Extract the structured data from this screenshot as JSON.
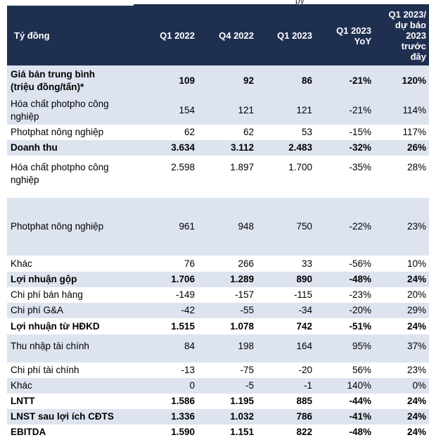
{
  "header": {
    "top_fragment": "py",
    "columns": [
      "Tỷ đồng",
      "Q1 2022",
      "Q4 2022",
      "Q1 2023",
      "Q1 2023\nYoY",
      "Q1 2023/\ndự báo\n2023\ntrước\nđây"
    ]
  },
  "rows": [
    {
      "label": "Giá bán trung bình\n(triệu đồng/tấn)*",
      "q1_2022": "109",
      "q4_2022": "92",
      "q1_2023": "86",
      "yoy": "-21%",
      "vs_forecast": "120%"
    },
    {
      "label": "Hóa chất photpho công\nnghiệp",
      "q1_2022": "154",
      "q4_2022": "121",
      "q1_2023": "121",
      "yoy": "-21%",
      "vs_forecast": "114%"
    },
    {
      "label": "Photphat nông nghiệp",
      "q1_2022": "62",
      "q4_2022": "62",
      "q1_2023": "53",
      "yoy": "-15%",
      "vs_forecast": "117%"
    },
    {
      "label": "Doanh thu",
      "q1_2022": "3.634",
      "q4_2022": "3.112",
      "q1_2023": "2.483",
      "yoy": "-32%",
      "vs_forecast": "26%"
    },
    {
      "label": "Hóa chất photpho công\nnghiệp",
      "q1_2022": "2.598",
      "q4_2022": "1.897",
      "q1_2023": "1.700",
      "yoy": "-35%",
      "vs_forecast": "28%"
    },
    {
      "label": "Photphat nông nghiệp",
      "q1_2022": "961",
      "q4_2022": "948",
      "q1_2023": "750",
      "yoy": "-22%",
      "vs_forecast": "23%"
    },
    {
      "label": "Khác",
      "q1_2022": "76",
      "q4_2022": "266",
      "q1_2023": "33",
      "yoy": "-56%",
      "vs_forecast": "10%"
    },
    {
      "label": "Lợi nhuận gộp",
      "q1_2022": "1.706",
      "q4_2022": "1.289",
      "q1_2023": "890",
      "yoy": "-48%",
      "vs_forecast": "24%"
    },
    {
      "label": "Chi phí bán hàng",
      "q1_2022": "-149",
      "q4_2022": "-157",
      "q1_2023": "-115",
      "yoy": "-23%",
      "vs_forecast": "20%"
    },
    {
      "label": "Chi phí G&A",
      "q1_2022": "-42",
      "q4_2022": "-55",
      "q1_2023": "-34",
      "yoy": "-20%",
      "vs_forecast": "29%"
    },
    {
      "label": "Lợi nhuận từ HĐKD",
      "q1_2022": "1.515",
      "q4_2022": "1.078",
      "q1_2023": "742",
      "yoy": "-51%",
      "vs_forecast": "24%"
    },
    {
      "label": "Thu nhập tài chính",
      "q1_2022": "84",
      "q4_2022": "198",
      "q1_2023": "164",
      "yoy": "95%",
      "vs_forecast": "37%"
    },
    {
      "label": "Chi phí tài chính",
      "q1_2022": "-13",
      "q4_2022": "-75",
      "q1_2023": "-20",
      "yoy": "56%",
      "vs_forecast": "23%"
    },
    {
      "label": "Khác",
      "q1_2022": "0",
      "q4_2022": "-5",
      "q1_2023": "-1",
      "yoy": "140%",
      "vs_forecast": "0%"
    },
    {
      "label": "LNTT",
      "q1_2022": "1.586",
      "q4_2022": "1.195",
      "q1_2023": "885",
      "yoy": "-44%",
      "vs_forecast": "24%"
    },
    {
      "label": "LNST sau lợi ích CĐTS",
      "q1_2022": "1.336",
      "q4_2022": "1.032",
      "q1_2023": "786",
      "yoy": "-41%",
      "vs_forecast": "24%"
    },
    {
      "label": "EBITDA",
      "q1_2022": "1.590",
      "q4_2022": "1.151",
      "q1_2023": "822",
      "yoy": "-48%",
      "vs_forecast": "24%"
    }
  ]
}
